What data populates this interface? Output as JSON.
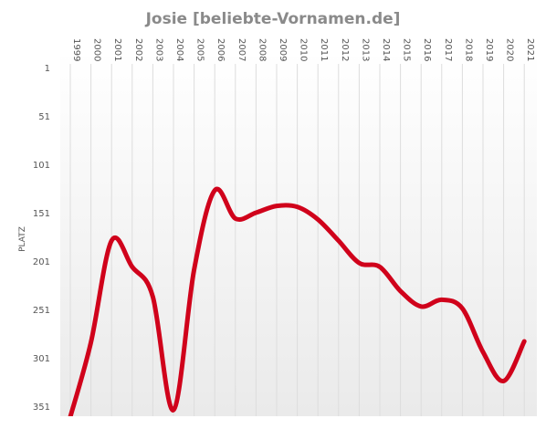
{
  "chart_data": {
    "type": "line",
    "title": "Josie [beliebte-Vornamen.de]",
    "ylabel": "PLATZ",
    "xlabel": "",
    "x": [
      "1999",
      "2000",
      "2001",
      "2002",
      "2003",
      "2004",
      "2005",
      "2006",
      "2007",
      "2008",
      "2009",
      "2010",
      "2011",
      "2012",
      "2013",
      "2014",
      "2015",
      "2016",
      "2017",
      "2018",
      "2019",
      "2020",
      "2021"
    ],
    "y_ticks": [
      1,
      51,
      101,
      151,
      201,
      251,
      301,
      351
    ],
    "ylim": [
      1,
      362
    ],
    "y_reversed": true,
    "grid": true,
    "series": [
      {
        "name": "",
        "color": "#d0021b",
        "values": [
          362,
          285,
          180,
          207,
          238,
          355,
          210,
          128,
          157,
          151,
          144,
          145,
          158,
          180,
          203,
          207,
          232,
          248,
          241,
          250,
          295,
          325,
          284
        ]
      }
    ]
  }
}
